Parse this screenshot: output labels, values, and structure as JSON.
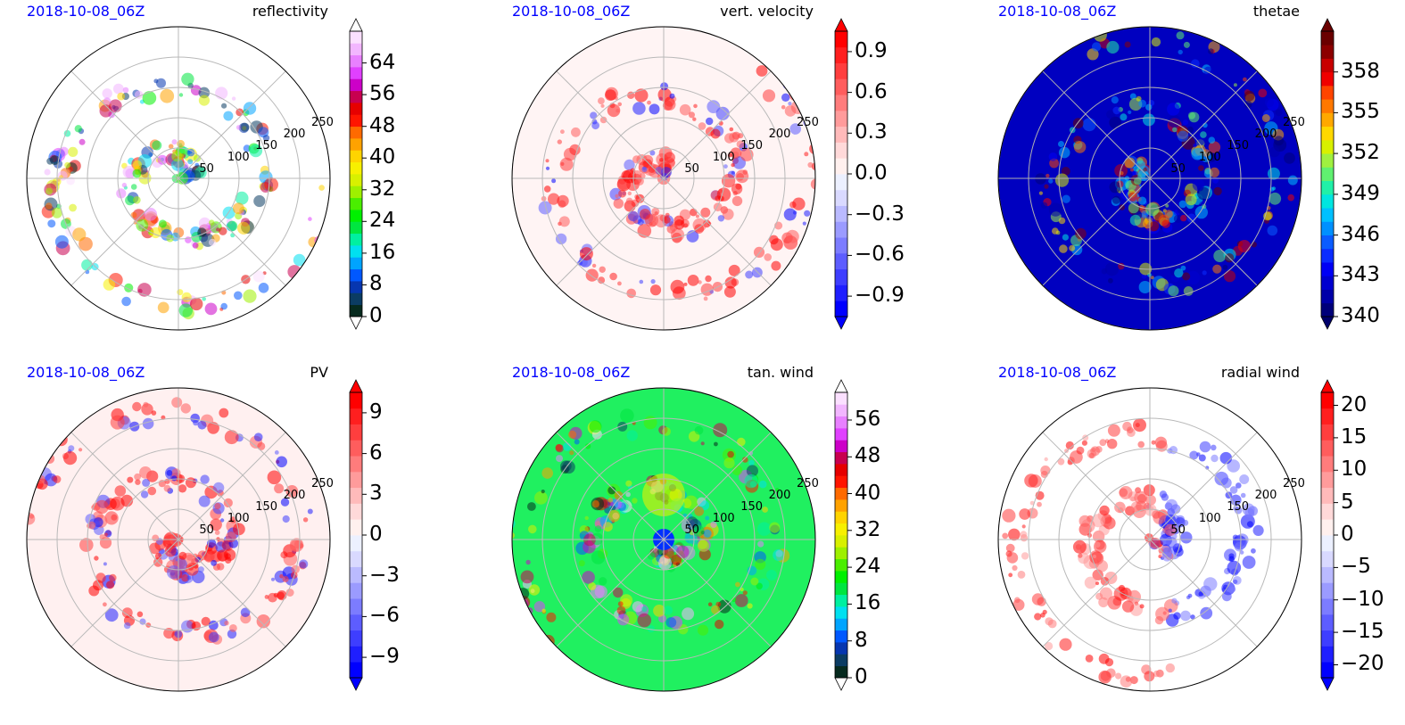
{
  "figure": {
    "ring_labels": [
      "50",
      "100",
      "150",
      "200",
      "250"
    ],
    "date_color": "#0000ff"
  },
  "chart_data": [
    {
      "type": "heatmap",
      "projection": "polar",
      "date": "2018-10-08_06Z",
      "title": "reflectivity",
      "colorbar": {
        "ticks": [
          "0",
          "8",
          "16",
          "24",
          "32",
          "40",
          "48",
          "56",
          "64"
        ],
        "vmin": 0,
        "vmax": 72,
        "extend": "max",
        "colors": [
          "#062a1e",
          "#0b3c63",
          "#0636b0",
          "#0058ff",
          "#00a4ff",
          "#00e0f0",
          "#00f0a0",
          "#00e640",
          "#00f000",
          "#4aee00",
          "#9ef000",
          "#d8f000",
          "#f7f000",
          "#ffd400",
          "#ffa200",
          "#ff6a00",
          "#ff1500",
          "#e60000",
          "#c80050",
          "#cc00c8",
          "#e040ff",
          "#e880ff",
          "#f2b6ff",
          "#fbe0ff"
        ],
        "extend_color": "#ffffff"
      },
      "field": {
        "background": "#ffffff"
      }
    },
    {
      "type": "heatmap",
      "projection": "polar",
      "date": "2018-10-08_06Z",
      "title": "vert. velocity",
      "colorbar": {
        "ticks": [
          "−0.9",
          "−0.6",
          "−0.3",
          "0.0",
          "0.3",
          "0.6",
          "0.9"
        ],
        "vmin": -1.05,
        "vmax": 1.05,
        "extend": "both",
        "colors": [
          "#0000ff",
          "#1f1fff",
          "#3e3eff",
          "#5d5dff",
          "#7c7cff",
          "#9b9bff",
          "#babaff",
          "#d9d9ff",
          "#ecf0ff",
          "#fff0ee",
          "#ffd9d9",
          "#ffbaba",
          "#ff9b9b",
          "#ff7c7c",
          "#ff5d5d",
          "#ff3e3e",
          "#ff1f1f",
          "#ff0000"
        ],
        "extend_color": [
          "#0000ff",
          "#ff0000"
        ]
      },
      "field": {
        "background": "#fff4f4"
      }
    },
    {
      "type": "heatmap",
      "projection": "polar",
      "date": "2018-10-08_06Z",
      "title": "thetae",
      "colorbar": {
        "ticks": [
          "340",
          "343",
          "346",
          "349",
          "352",
          "355",
          "358"
        ],
        "vmin": 340,
        "vmax": 361,
        "extend": "both",
        "colors": [
          "#00007a",
          "#0000a8",
          "#0000d0",
          "#0000f5",
          "#0a2cff",
          "#0a5cff",
          "#0090ff",
          "#00c0ff",
          "#00e6e0",
          "#20f0a8",
          "#60f070",
          "#a0f040",
          "#d8f000",
          "#ffd800",
          "#ffa800",
          "#ff7800",
          "#ff4400",
          "#f00000",
          "#c80000",
          "#8c0000",
          "#6a0000"
        ],
        "extend_color": [
          "#00006a",
          "#6a0000"
        ]
      },
      "field": {
        "background": "#0000c0"
      }
    },
    {
      "type": "heatmap",
      "projection": "polar",
      "date": "2018-10-08_06Z",
      "title": "PV",
      "colorbar": {
        "ticks": [
          "−9",
          "−6",
          "−3",
          "0",
          "3",
          "6",
          "9"
        ],
        "vmin": -10.5,
        "vmax": 10.5,
        "extend": "both",
        "colors": [
          "#0000ff",
          "#1f1fff",
          "#3e3eff",
          "#5d5dff",
          "#7c7cff",
          "#9b9bff",
          "#babaff",
          "#d9d9ff",
          "#ecf0ff",
          "#fff0ee",
          "#ffd9d9",
          "#ffbaba",
          "#ff9b9b",
          "#ff7c7c",
          "#ff5d5d",
          "#ff3e3e",
          "#ff1f1f",
          "#ff0000"
        ],
        "extend_color": [
          "#0000ff",
          "#ff0000"
        ]
      },
      "field": {
        "background": "#fff0f0"
      }
    },
    {
      "type": "heatmap",
      "projection": "polar",
      "date": "2018-10-08_06Z",
      "title": "tan. wind",
      "colorbar": {
        "ticks": [
          "0",
          "8",
          "16",
          "24",
          "32",
          "40",
          "48",
          "56"
        ],
        "vmin": 0,
        "vmax": 62,
        "extend": "max",
        "colors": [
          "#062a1e",
          "#0b3c63",
          "#0636b0",
          "#0058ff",
          "#00a4ff",
          "#00e0f0",
          "#00f0a0",
          "#00e640",
          "#00f000",
          "#4aee00",
          "#9ef000",
          "#d8f000",
          "#f7f000",
          "#ffd400",
          "#ffa200",
          "#ff6a00",
          "#ff1500",
          "#e60000",
          "#c80050",
          "#cc00c8",
          "#e040ff",
          "#e880ff",
          "#f2b6ff",
          "#fbe0ff"
        ],
        "extend_color": "#ffffff"
      },
      "field": {
        "background": "#20f060"
      }
    },
    {
      "type": "heatmap",
      "projection": "polar",
      "date": "2018-10-08_06Z",
      "title": "radial wind",
      "colorbar": {
        "ticks": [
          "−20",
          "−15",
          "−10",
          "−5",
          "0",
          "5",
          "10",
          "15",
          "20"
        ],
        "vmin": -22,
        "vmax": 22,
        "extend": "both",
        "colors": [
          "#0000ff",
          "#1f1fff",
          "#3e3eff",
          "#5d5dff",
          "#7c7cff",
          "#9b9bff",
          "#babaff",
          "#d9d9ff",
          "#ecf0ff",
          "#fff0ee",
          "#ffd9d9",
          "#ffbaba",
          "#ff9b9b",
          "#ff7c7c",
          "#ff5d5d",
          "#ff3e3e",
          "#ff1f1f",
          "#ff0000"
        ],
        "extend_color": [
          "#0000ff",
          "#ff0000"
        ]
      },
      "field": {
        "background": "#ffffff"
      }
    }
  ]
}
